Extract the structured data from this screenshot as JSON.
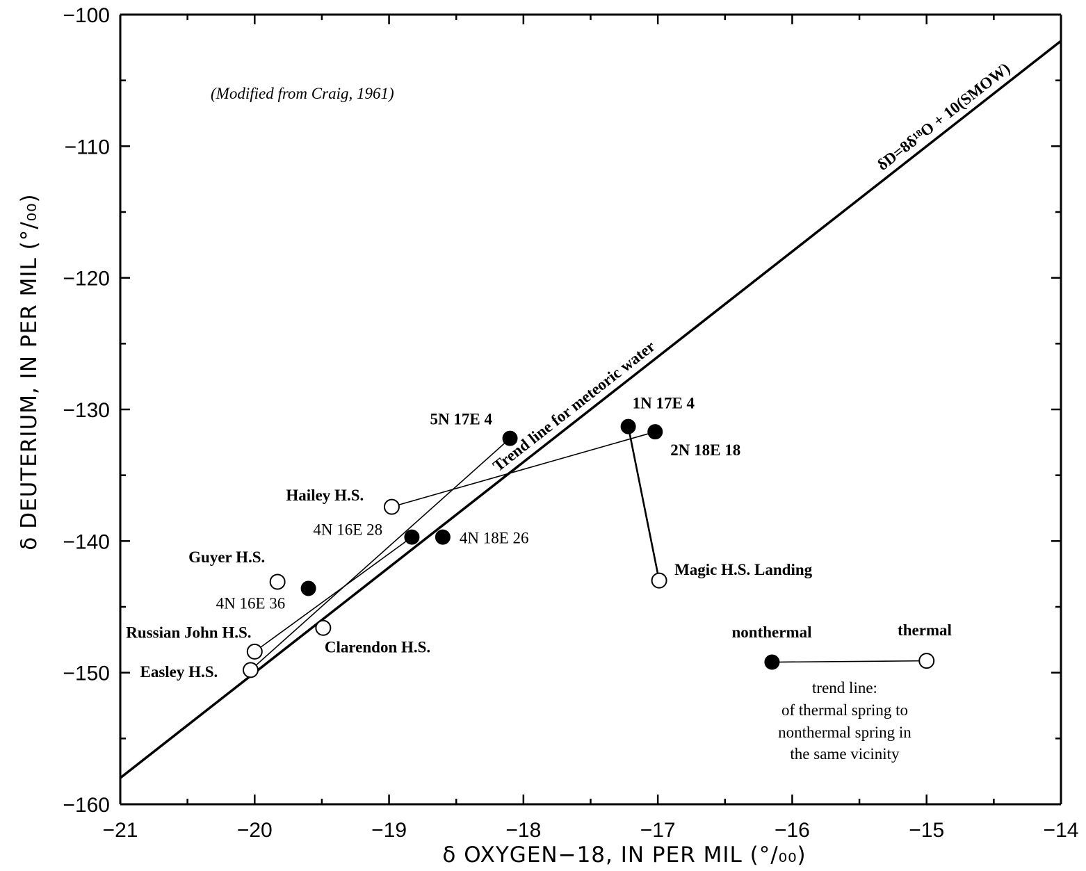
{
  "chart_data": {
    "type": "scatter",
    "title": "",
    "note": "(Modified from Craig, 1961)",
    "xlabel": "δ OXYGEN−18, IN PER MIL (°/₀₀)",
    "ylabel": "δ DEUTERIUM, IN PER MIL (°/₀₀)",
    "xlim": [
      -21,
      -14
    ],
    "ylim": [
      -160,
      -100
    ],
    "x_ticks": [
      -21,
      -20,
      -19,
      -18,
      -17,
      -16,
      -15,
      -14
    ],
    "x_tick_labels": [
      "−21",
      "−20",
      "−19",
      "−18",
      "−17",
      "−16",
      "−15",
      "−14"
    ],
    "y_ticks": [
      -100,
      -110,
      -120,
      -130,
      -140,
      -150,
      -160
    ],
    "y_tick_labels": [
      "−100",
      "−110",
      "−120",
      "−130",
      "−140",
      "−150",
      "−160"
    ],
    "grid": false,
    "meteoric_line": {
      "label": "Trend line for meteoric water",
      "equation": "δD=8δ¹⁸O + 10(SMOW)",
      "slope": 8,
      "intercept": 10
    },
    "points": [
      {
        "label": "5N 17E 4",
        "x": -18.1,
        "y": -132.2,
        "type": "nonthermal"
      },
      {
        "label": "1N 17E 4",
        "x": -17.22,
        "y": -131.3,
        "type": "nonthermal"
      },
      {
        "label": "2N 18E 18",
        "x": -17.02,
        "y": -131.7,
        "type": "nonthermal"
      },
      {
        "label": "4N 16E 28",
        "x": -18.83,
        "y": -139.7,
        "type": "nonthermal"
      },
      {
        "label": "4N 18E 26",
        "x": -18.6,
        "y": -139.7,
        "type": "nonthermal"
      },
      {
        "label": "4N 16E 36",
        "x": -19.6,
        "y": -143.6,
        "type": "nonthermal"
      },
      {
        "label": "Hailey H.S.",
        "x": -18.98,
        "y": -137.4,
        "type": "thermal"
      },
      {
        "label": "Guyer H.S.",
        "x": -19.83,
        "y": -143.1,
        "type": "thermal"
      },
      {
        "label": "Magic H.S. Landing",
        "x": -16.99,
        "y": -143.0,
        "type": "thermal"
      },
      {
        "label": "Clarendon H.S.",
        "x": -19.49,
        "y": -146.6,
        "type": "thermal"
      },
      {
        "label": "Russian John H.S.",
        "x": -20.0,
        "y": -148.4,
        "type": "thermal"
      },
      {
        "label": "Easley H.S.",
        "x": -20.03,
        "y": -149.8,
        "type": "thermal"
      }
    ],
    "connections": [
      {
        "from": "Hailey H.S.",
        "to": "2N 18E 18"
      },
      {
        "from": "Easley H.S.",
        "to": "5N 17E 4"
      },
      {
        "from": "Russian John H.S.",
        "to": "4N 16E 28"
      },
      {
        "from": "Magic H.S. Landing",
        "to": "1N 17E 4"
      }
    ],
    "legend": {
      "placement": "bottom-right",
      "nonthermal_label": "nonthermal",
      "thermal_label": "thermal",
      "nonthermal_point": {
        "x": -16.15,
        "y": -149.2
      },
      "thermal_point": {
        "x": -15.0,
        "y": -149.1
      },
      "description": [
        "trend line:",
        "of thermal spring to",
        "nonthermal spring in",
        "the same vicinity"
      ]
    }
  }
}
